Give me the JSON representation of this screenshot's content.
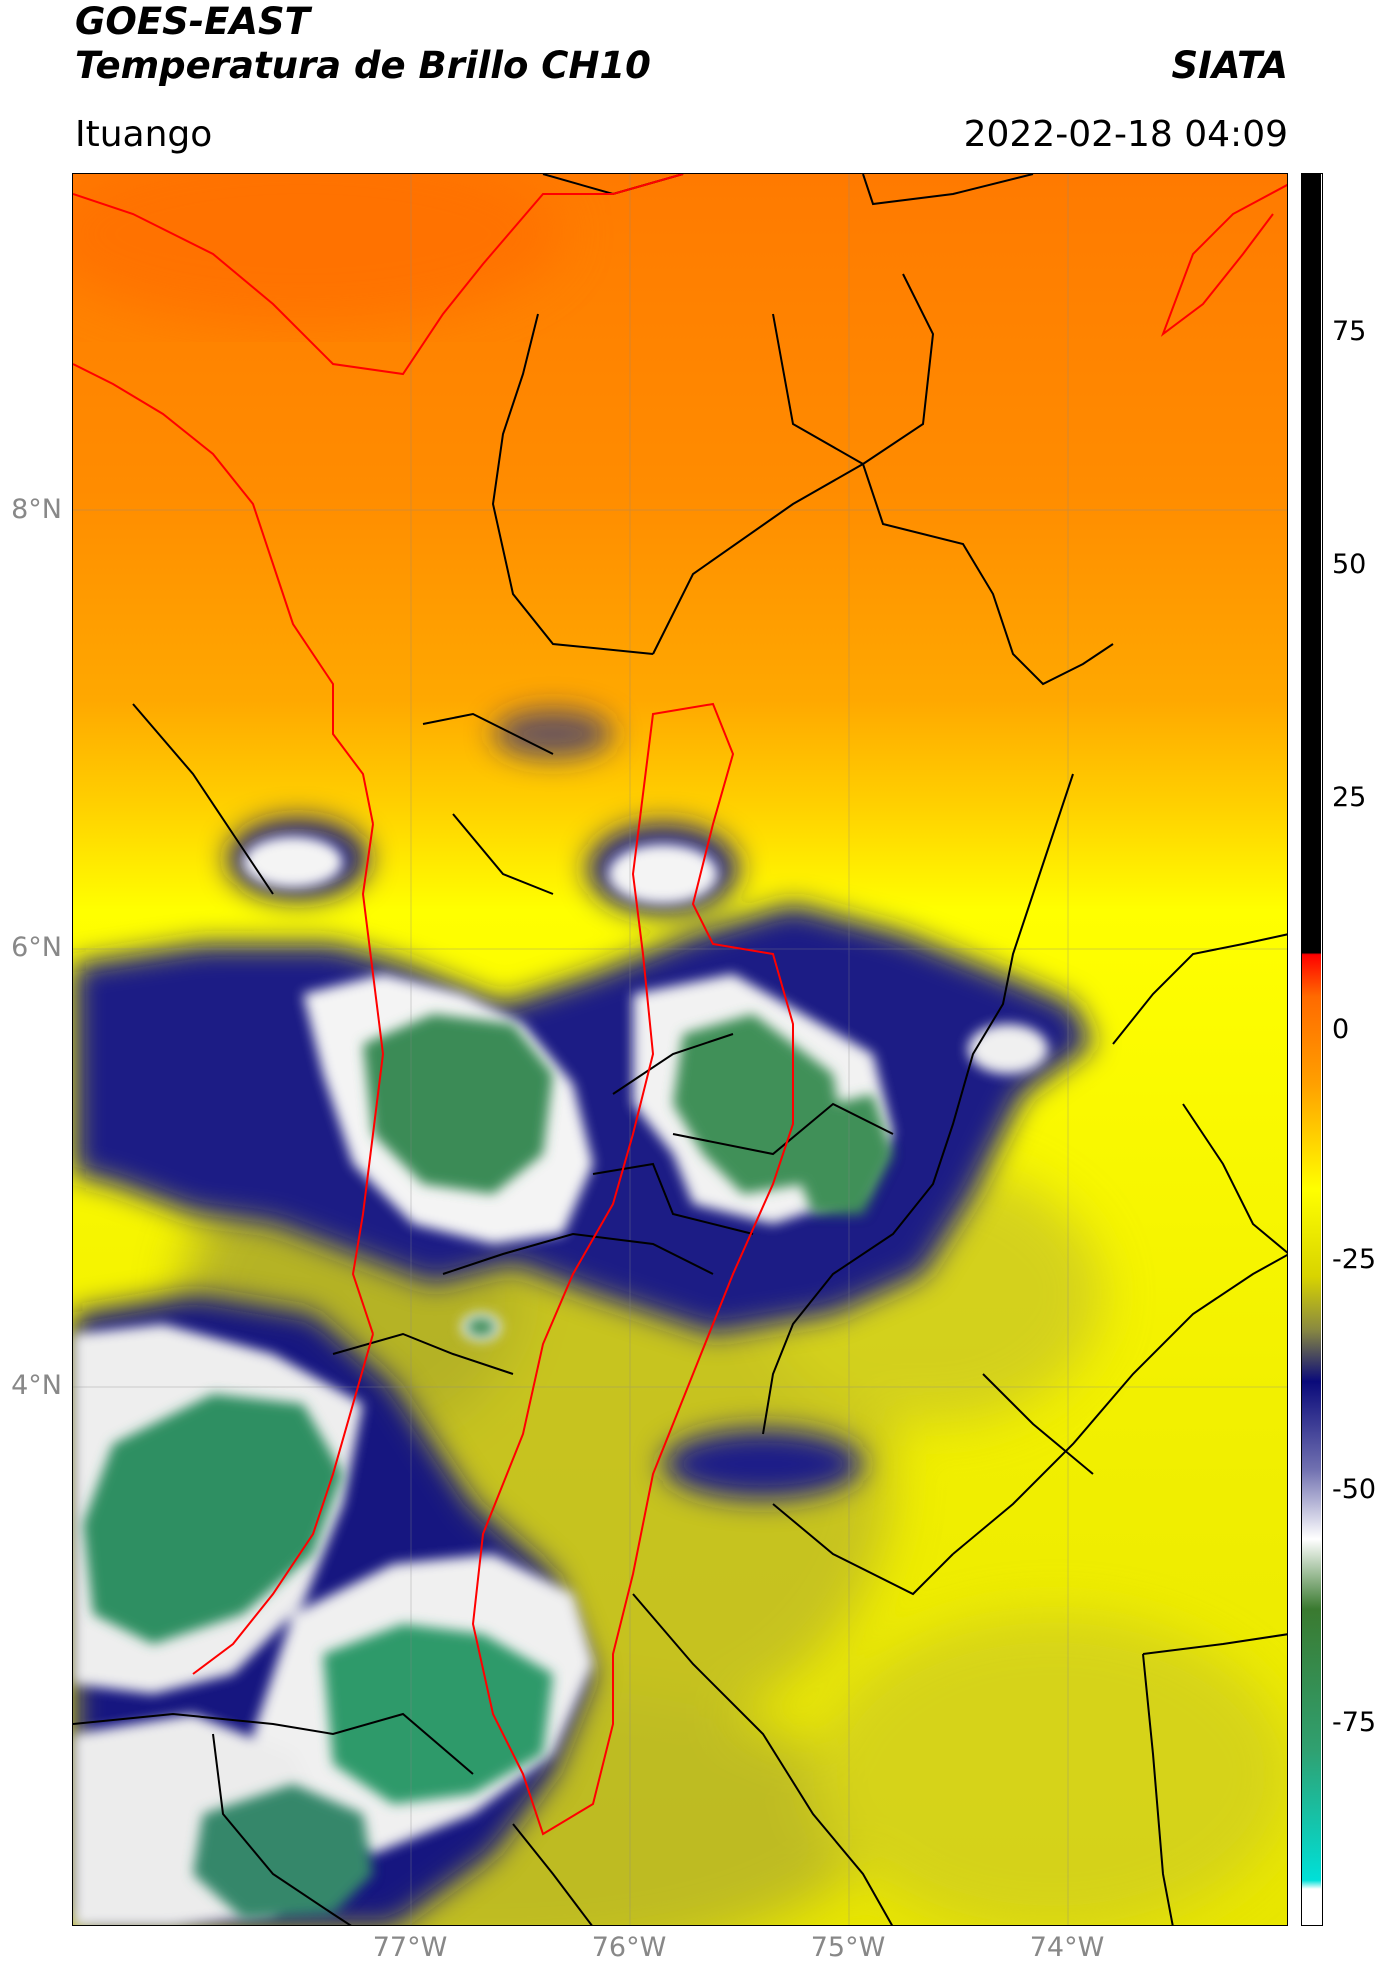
{
  "header": {
    "line1": "GOES-EAST",
    "line2": "Temperatura de Brillo CH10",
    "brand": "SIATA",
    "location": "Ituango",
    "datetime": "2022-02-18 04:09"
  },
  "map": {
    "lat_labels": [
      "8°N",
      "6°N",
      "4°N"
    ],
    "lon_labels": [
      "77°W",
      "76°W",
      "75°W",
      "74°W"
    ],
    "colors": {
      "warm_orange": "#ff8c00",
      "yellow": "#ffff00",
      "olive": "#9a9a2a",
      "navy": "#0a0a7a",
      "white": "#ffffff",
      "green": "#3a8a55",
      "border_black": "#000000",
      "border_red": "#ff0000"
    }
  },
  "colorbar": {
    "ticks": [
      "75",
      "50",
      "25",
      "0",
      "-25",
      "-50",
      "-75"
    ],
    "range": [
      -90,
      90
    ]
  }
}
